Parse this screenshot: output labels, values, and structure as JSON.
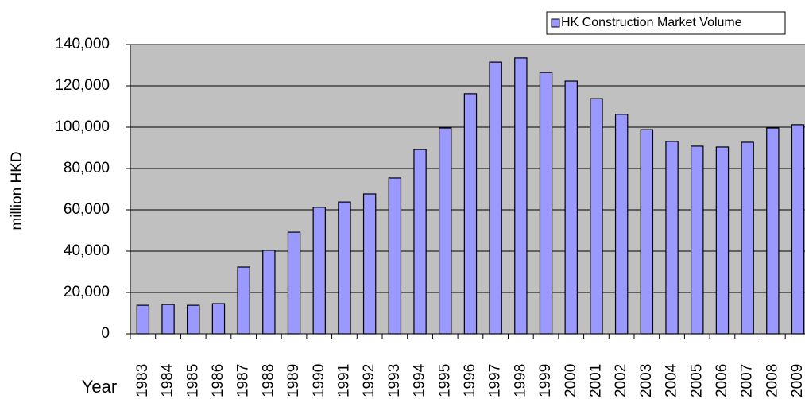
{
  "chart_data": {
    "type": "bar",
    "x_label": "Year",
    "y_label": "million HKD",
    "categories": [
      "1983",
      "1984",
      "1985",
      "1986",
      "1987",
      "1988",
      "1989",
      "1990",
      "1991",
      "1992",
      "1993",
      "1994",
      "1995",
      "1996",
      "1997",
      "1998",
      "1999",
      "2000",
      "2001",
      "2002",
      "2003",
      "2004",
      "2005",
      "2006",
      "2007",
      "2008",
      "2009"
    ],
    "series": [
      {
        "name": "HK Construction Market Volume",
        "color": "#9999ff",
        "values": [
          13800,
          14200,
          13800,
          14600,
          32300,
          40400,
          49200,
          61200,
          63800,
          67700,
          75400,
          89200,
          99600,
          116200,
          131500,
          133500,
          126500,
          122300,
          113800,
          106200,
          98800,
          93100,
          90800,
          90400,
          92700,
          99600,
          101200
        ]
      }
    ],
    "ylim": [
      0,
      140000
    ],
    "yticks": [
      0,
      {
        "value": 20000,
        "label": "20,000"
      },
      {
        "value": 40000,
        "label": "40,000"
      },
      {
        "value": 60000,
        "label": "60,000"
      },
      {
        "value": 80000,
        "label": "80,000"
      },
      {
        "value": 100000,
        "label": "100,000"
      },
      {
        "value": 120000,
        "label": "120,000"
      },
      {
        "value": 140000,
        "label": "140,000"
      }
    ],
    "grid": true,
    "plot_background": "#c0c0c0",
    "legend": "top-right"
  }
}
